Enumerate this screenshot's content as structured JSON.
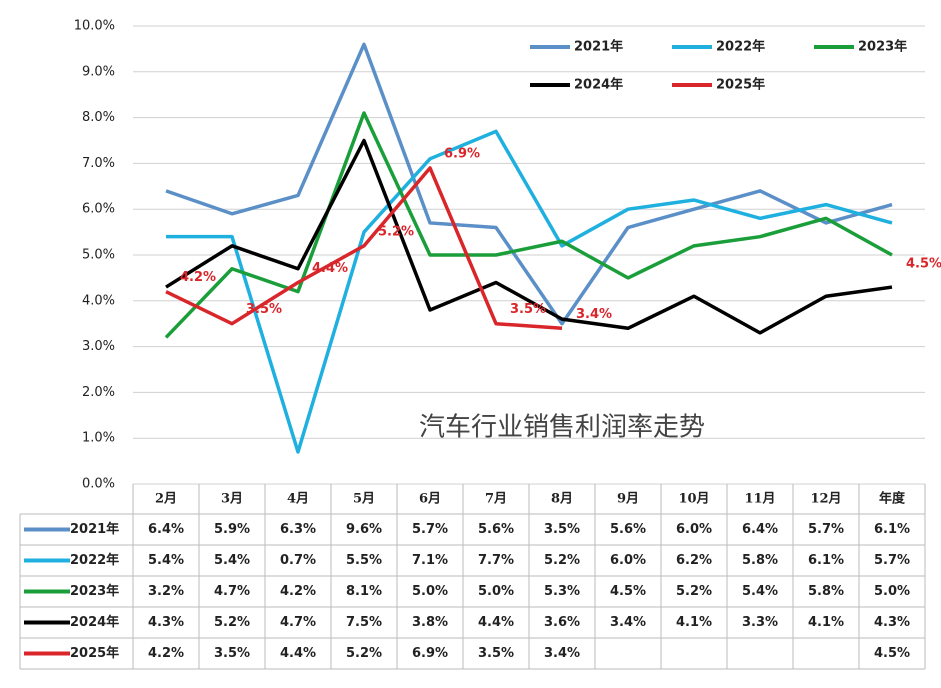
{
  "chart_data": {
    "type": "line",
    "title": "汽车行业销售利润率走势",
    "categories": [
      "2月",
      "3月",
      "4月",
      "5月",
      "6月",
      "7月",
      "8月",
      "9月",
      "10月",
      "11月",
      "12月",
      "年度"
    ],
    "ylim": [
      0,
      10
    ],
    "yticks": [
      {
        "value": 0,
        "label": "0.0%"
      },
      {
        "value": 1,
        "label": "1.0%"
      },
      {
        "value": 2,
        "label": "2.0%"
      },
      {
        "value": 3,
        "label": "3.0%"
      },
      {
        "value": 4,
        "label": "4.0%"
      },
      {
        "value": 5,
        "label": "5.0%"
      },
      {
        "value": 6,
        "label": "6.0%"
      },
      {
        "value": 7,
        "label": "7.0%"
      },
      {
        "value": 8,
        "label": "8.0%"
      },
      {
        "value": 9,
        "label": "9.0%"
      },
      {
        "value": 10,
        "label": "10.0%"
      }
    ],
    "grid": true,
    "series": [
      {
        "name": "2021年",
        "color": "#5b8fc7",
        "values": [
          6.4,
          5.9,
          6.3,
          9.6,
          5.7,
          5.6,
          3.5,
          5.6,
          6.0,
          6.4,
          5.7,
          6.1
        ],
        "value_labels": [
          "6.4%",
          "5.9%",
          "6.3%",
          "9.6%",
          "5.7%",
          "5.6%",
          "3.5%",
          "5.6%",
          "6.0%",
          "6.4%",
          "5.7%",
          "6.1%"
        ]
      },
      {
        "name": "2022年",
        "color": "#1fb0e0",
        "values": [
          5.4,
          5.4,
          0.7,
          5.5,
          7.1,
          7.7,
          5.2,
          6.0,
          6.2,
          5.8,
          6.1,
          5.7
        ],
        "value_labels": [
          "5.4%",
          "5.4%",
          "0.7%",
          "5.5%",
          "7.1%",
          "7.7%",
          "5.2%",
          "6.0%",
          "6.2%",
          "5.8%",
          "6.1%",
          "5.7%"
        ]
      },
      {
        "name": "2023年",
        "color": "#1a9e3a",
        "values": [
          3.2,
          4.7,
          4.2,
          8.1,
          5.0,
          5.0,
          5.3,
          4.5,
          5.2,
          5.4,
          5.8,
          5.0
        ],
        "value_labels": [
          "3.2%",
          "4.7%",
          "4.2%",
          "8.1%",
          "5.0%",
          "5.0%",
          "5.3%",
          "4.5%",
          "5.2%",
          "5.4%",
          "5.8%",
          "5.0%"
        ]
      },
      {
        "name": "2024年",
        "color": "#000000",
        "values": [
          4.3,
          5.2,
          4.7,
          7.5,
          3.8,
          4.4,
          3.6,
          3.4,
          4.1,
          3.3,
          4.1,
          4.3
        ],
        "value_labels": [
          "4.3%",
          "5.2%",
          "4.7%",
          "7.5%",
          "3.8%",
          "4.4%",
          "3.6%",
          "3.4%",
          "4.1%",
          "3.3%",
          "4.1%",
          "4.3%"
        ]
      },
      {
        "name": "2025年",
        "color": "#d9262b",
        "values": [
          4.2,
          3.5,
          4.4,
          5.2,
          6.9,
          3.5,
          3.4,
          null,
          null,
          null,
          null,
          4.5
        ],
        "value_labels": [
          "4.2%",
          "3.5%",
          "4.4%",
          "5.2%",
          "6.9%",
          "3.5%",
          "3.4%",
          null,
          null,
          null,
          null,
          "4.5%"
        ]
      }
    ]
  }
}
